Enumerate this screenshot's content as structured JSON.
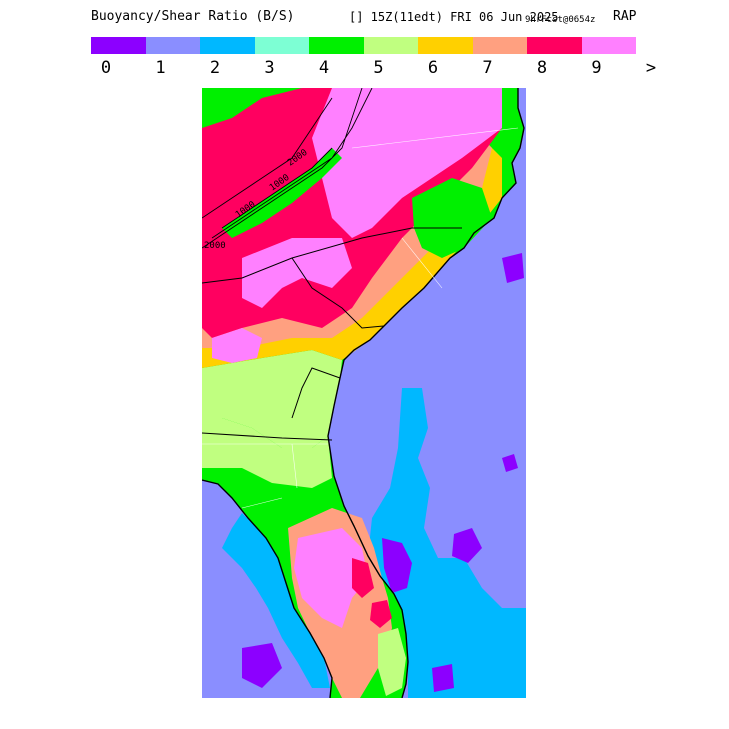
{
  "header": {
    "title": "Buoyancy/Shear Ratio (B/S)",
    "time": "[] 15Z(11edt) FRI 06 Jun 2025",
    "forecast": "9hrFcst@0654z",
    "model": "RAP"
  },
  "legend": {
    "colors": [
      "#8c00ff",
      "#8a8eff",
      "#00b8ff",
      "#7dffd4",
      "#00f000",
      "#c0ff80",
      "#ffd000",
      "#ffa080",
      "#ff0060",
      "#ff80ff"
    ],
    "labels": [
      "0",
      "1",
      "2",
      "3",
      "4",
      "5",
      "6",
      "7",
      "8",
      "9",
      ">"
    ]
  },
  "map": {
    "contour_labels": [
      "1000",
      "1000",
      "2000",
      "2000"
    ],
    "colors": {
      "ocean": "#8a8eff",
      "land_base": "#00f000",
      "boundary": "#000000",
      "county": "#ffffff"
    }
  }
}
